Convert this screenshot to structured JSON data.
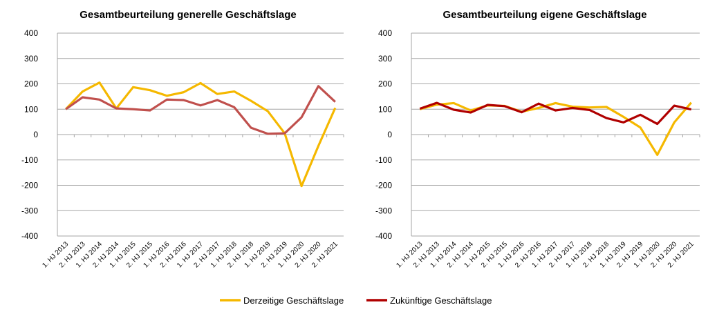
{
  "colors": {
    "derzeitig": "#f5b800",
    "zukuenftig_left": "#c0504d",
    "zukuenftig_right": "#b00000",
    "grid": "#a6a6a6"
  },
  "legend": [
    "Derzeitige Geschäftslage",
    "Zukünftige Geschäftslage"
  ],
  "chart_data": [
    {
      "type": "line",
      "title": "Gesamtbeurteilung generelle Geschäftslage",
      "ylim": [
        -400,
        400
      ],
      "yticks": [
        400,
        300,
        200,
        100,
        0,
        -100,
        -200,
        -300,
        -400
      ],
      "grid": true,
      "categories": [
        "1. HJ 2013",
        "2. HJ 2013",
        "1. HJ 2014",
        "2. HJ 2014",
        "1. HJ 2015",
        "2. HJ 2015",
        "1. HJ 2016",
        "2. HJ 2016",
        "1. HJ 2017",
        "2. HJ 2017",
        "1. HJ 2018",
        "2. HJ 2018",
        "1. HJ 2019",
        "2. HJ 2019",
        "1. HJ 2020",
        "2. HJ 2020",
        "2. HJ 2021"
      ],
      "series": [
        {
          "name": "Derzeitige Geschäftslage",
          "values": [
            100,
            170,
            205,
            103,
            187,
            175,
            153,
            167,
            203,
            160,
            170,
            133,
            92,
            5,
            -203,
            -45,
            105
          ]
        },
        {
          "name": "Zukünftige Geschäftslage",
          "values": [
            100,
            147,
            138,
            103,
            100,
            95,
            138,
            136,
            115,
            136,
            108,
            27,
            3,
            5,
            68,
            191,
            129
          ]
        }
      ]
    },
    {
      "type": "line",
      "title": "Gesamtbeurteilung eigene Geschäftslage",
      "ylim": [
        -400,
        400
      ],
      "yticks": [
        400,
        300,
        200,
        100,
        0,
        -100,
        -200,
        -300,
        -400
      ],
      "grid": true,
      "categories": [
        "1. HJ 2013",
        "2. HJ 2013",
        "1. HJ 2014",
        "2. HJ 2014",
        "1. HJ 2015",
        "2. HJ 2015",
        "1. HJ 2016",
        "2. HJ 2016",
        "1. HJ 2017",
        "2. HJ 2017",
        "1. HJ 2018",
        "2. HJ 2018",
        "1. HJ 2019",
        "2. HJ 2019",
        "1. HJ 2020",
        "2. HJ 2020",
        "2. HJ 2021"
      ],
      "series": [
        {
          "name": "Derzeitige Geschäftslage",
          "values": [
            100,
            118,
            124,
            95,
            115,
            113,
            90,
            105,
            124,
            110,
            107,
            109,
            70,
            28,
            -80,
            48,
            126
          ]
        },
        {
          "name": "Zukünftige Geschäftslage",
          "values": [
            102,
            125,
            98,
            87,
            117,
            112,
            88,
            122,
            95,
            105,
            97,
            65,
            48,
            78,
            42,
            114,
            99
          ]
        }
      ]
    }
  ]
}
